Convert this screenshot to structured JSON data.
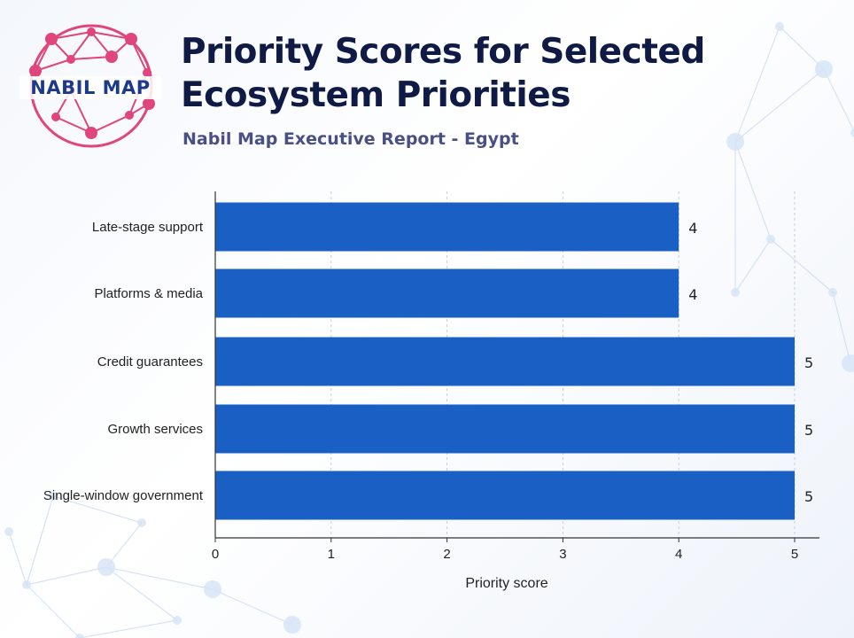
{
  "logo": {
    "text": "NABIL MAP",
    "color": "#e0457b"
  },
  "header": {
    "title": "Priority Scores for Selected Ecosystem Priorities",
    "subtitle": "Nabil Map Executive Report - Egypt"
  },
  "colors": {
    "bar": "#1a5fc4",
    "title": "#0f1a45",
    "subtitle": "#4a4f84",
    "grid": "#c8ccd6"
  },
  "chart_data": {
    "type": "bar",
    "orientation": "horizontal",
    "categories": [
      "Late-stage support",
      "Platforms & media",
      "Credit guarantees",
      "Growth services",
      "Single-window government"
    ],
    "values": [
      4,
      4,
      5,
      5,
      5
    ],
    "data_labels": [
      "4",
      "4",
      "5",
      "5",
      "5"
    ],
    "title": "Priority Scores for Selected Ecosystem Priorities",
    "subtitle": "Nabil Map Executive Report - Egypt",
    "xlabel": "Priority score",
    "ylabel": "",
    "xlim": [
      0,
      5
    ],
    "xticks": [
      "0",
      "1",
      "2",
      "3",
      "4",
      "5"
    ],
    "grid": "vertical-dashed",
    "legend": "none"
  }
}
